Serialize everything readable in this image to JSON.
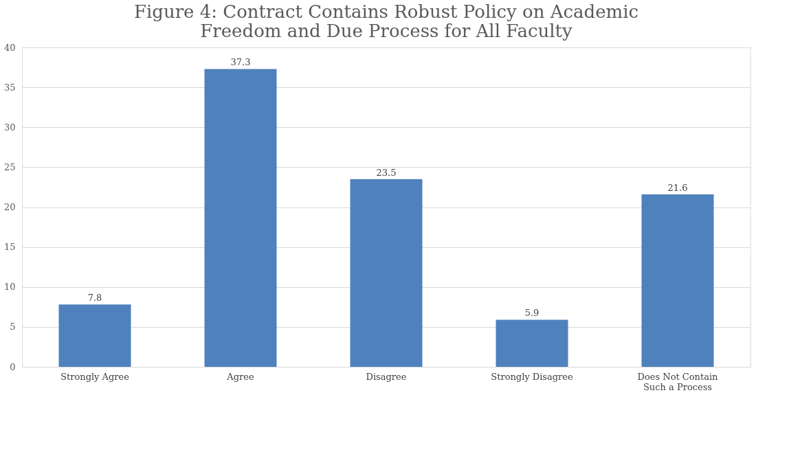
{
  "chart_data": {
    "type": "bar",
    "title": "Figure 4: Contract Contains Robust Policy on Academic Freedom and Due Process for All Faculty",
    "categories": [
      "Strongly Agree",
      "Agree",
      "Disagree",
      "Strongly Disagree",
      "Does Not Contain Such a Process"
    ],
    "values": [
      7.8,
      37.3,
      23.5,
      5.9,
      21.6
    ],
    "color": "#4f81bd",
    "ylim": [
      0,
      40
    ],
    "yticks": [
      0,
      5,
      10,
      15,
      20,
      25,
      30,
      35,
      40
    ],
    "grid": "y",
    "data_labels": true
  }
}
